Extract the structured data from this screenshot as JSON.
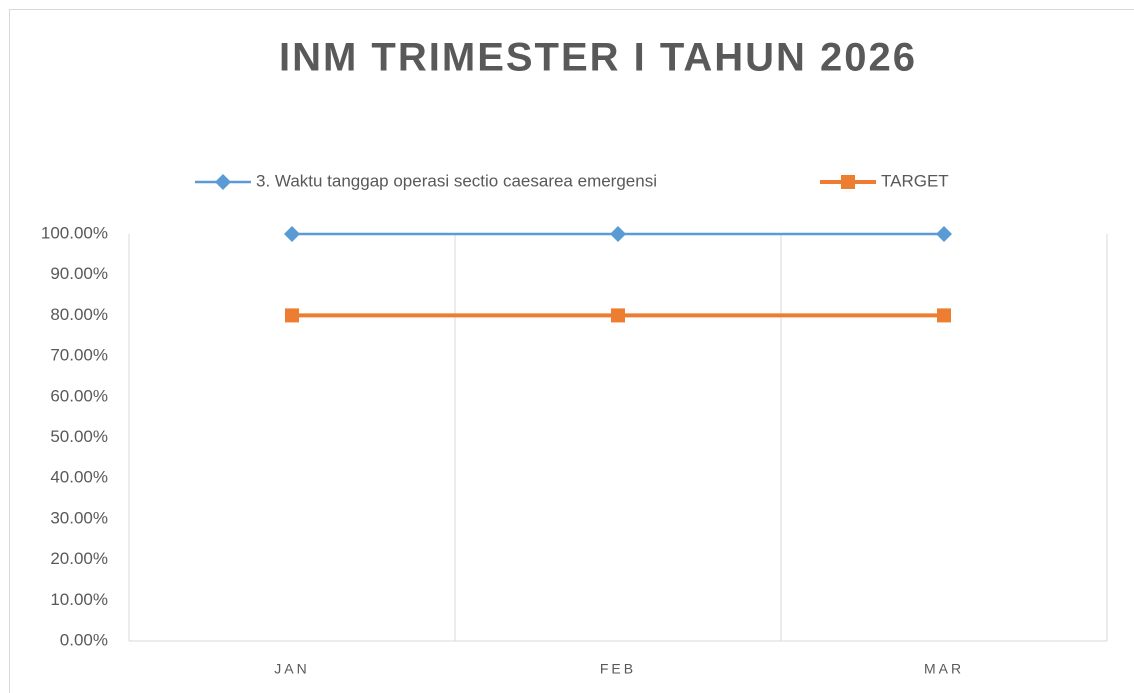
{
  "chart_data": {
    "type": "line",
    "title": "INM TRIMESTER I TAHUN 2026",
    "categories": [
      "JAN",
      "FEB",
      "MAR"
    ],
    "series": [
      {
        "name": "3. Waktu tanggap operasi sectio caesarea emergensi",
        "color": "#5b9bd5",
        "marker": "diamond",
        "values": [
          100,
          100,
          100
        ]
      },
      {
        "name": "TARGET",
        "color": "#ed7d31",
        "marker": "square",
        "values": [
          80,
          80,
          80
        ]
      }
    ],
    "ylim": [
      0,
      100
    ],
    "yticks": [
      {
        "value": 0,
        "label": "0.00%"
      },
      {
        "value": 10,
        "label": "10.00%"
      },
      {
        "value": 20,
        "label": "20.00%"
      },
      {
        "value": 30,
        "label": "30.00%"
      },
      {
        "value": 40,
        "label": "40.00%"
      },
      {
        "value": 50,
        "label": "50.00%"
      },
      {
        "value": 60,
        "label": "60.00%"
      },
      {
        "value": 70,
        "label": "70.00%"
      },
      {
        "value": 80,
        "label": "80.00%"
      },
      {
        "value": 90,
        "label": "90.00%"
      },
      {
        "value": 100,
        "label": "100.00%"
      }
    ],
    "grid": "x",
    "legend": "top"
  }
}
